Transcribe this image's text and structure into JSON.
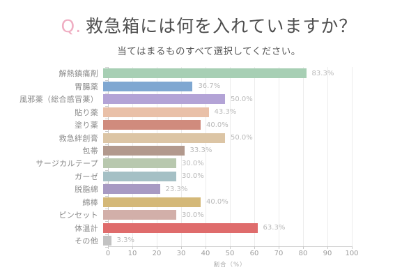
{
  "header": {
    "q_prefix": "Q.",
    "title": "救急箱には何を入れていますか？",
    "subtitle": "当てはまるものすべて選択してください。",
    "accent_pink": "#efadc2",
    "title_color": "#4e4e4e"
  },
  "chart_data": {
    "type": "bar",
    "orientation": "horizontal",
    "title": "救急箱には何を入れていますか？",
    "subtitle": "当てはまるものすべて選択してください。",
    "categories": [
      "解熱鎮痛剤",
      "胃腸薬",
      "風邪薬（総合感冒薬）",
      "貼り薬",
      "塗り薬",
      "救急絆創膏",
      "包帯",
      "サージカルテープ",
      "ガーゼ",
      "脱脂綿",
      "綿棒",
      "ピンセット",
      "体温計",
      "その他"
    ],
    "values": [
      83.3,
      36.7,
      50.0,
      43.3,
      40.0,
      50.0,
      33.3,
      30.0,
      30.0,
      23.3,
      40.0,
      30.0,
      63.3,
      3.3
    ],
    "value_labels": [
      "83.3%",
      "36.7%",
      "50.0%",
      "43.3%",
      "40.0%",
      "50.0%",
      "33.3%",
      "30.0%",
      "30.0%",
      "23.3%",
      "40.0%",
      "30.0%",
      "63.3%",
      "3.3%"
    ],
    "bar_colors": [
      "#a7cfb4",
      "#7fa7d1",
      "#b3a3d6",
      "#e9c0a8",
      "#d08b7d",
      "#dcc5a5",
      "#b2998d",
      "#b8c8ae",
      "#a5c0c5",
      "#a89ac3",
      "#d4b878",
      "#d2afa9",
      "#df6c6c",
      "#c2c2c2"
    ],
    "xlabel": "割合（%）",
    "x_ticks": [
      0,
      10,
      20,
      30,
      40,
      50,
      60,
      70,
      80,
      90,
      100
    ],
    "xlim": [
      0,
      100
    ],
    "grid": true,
    "legend": false,
    "gridline_color": "#ececec",
    "axis_color": "#c9c9c9",
    "category_label_color": "#898989",
    "value_label_color": "#b9b9b9"
  }
}
